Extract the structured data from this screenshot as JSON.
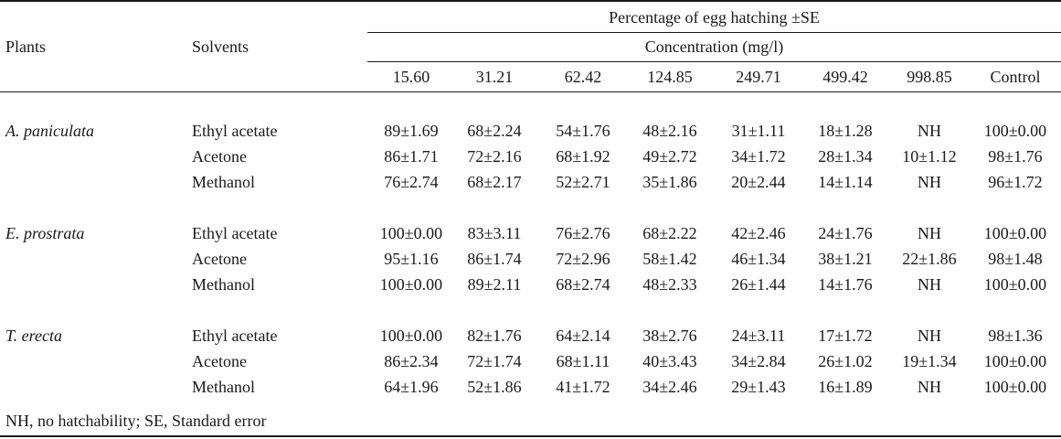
{
  "header": {
    "plants": "Plants",
    "solvents": "Solvents",
    "group_title": "Percentage of egg hatching ±SE",
    "subgroup_title": "Concentration (mg/l)",
    "columns": [
      "15.60",
      "31.21",
      "62.42",
      "124.85",
      "249.71",
      "499.42",
      "998.85",
      "Control"
    ]
  },
  "groups": [
    {
      "plant": "A. paniculata",
      "rows": [
        {
          "solvent": "Ethyl acetate",
          "values": [
            "89±1.69",
            "68±2.24",
            "54±1.76",
            "48±2.16",
            "31±1.11",
            "18±1.28",
            "NH",
            "100±0.00"
          ]
        },
        {
          "solvent": "Acetone",
          "values": [
            "86±1.71",
            "72±2.16",
            "68±1.92",
            "49±2.72",
            "34±1.72",
            "28±1.34",
            "10±1.12",
            "98±1.76"
          ]
        },
        {
          "solvent": "Methanol",
          "values": [
            "76±2.74",
            "68±2.17",
            "52±2.71",
            "35±1.86",
            "20±2.44",
            "14±1.14",
            "NH",
            "96±1.72"
          ]
        }
      ]
    },
    {
      "plant": "E. prostrata",
      "rows": [
        {
          "solvent": "Ethyl acetate",
          "values": [
            "100±0.00",
            "83±3.11",
            "76±2.76",
            "68±2.22",
            "42±2.46",
            "24±1.76",
            "NH",
            "100±0.00"
          ]
        },
        {
          "solvent": "Acetone",
          "values": [
            "95±1.16",
            "86±1.74",
            "72±2.96",
            "58±1.42",
            "46±1.34",
            "38±1.21",
            "22±1.86",
            "98±1.48"
          ]
        },
        {
          "solvent": "Methanol",
          "values": [
            "100±0.00",
            "89±2.11",
            "68±2.74",
            "48±2.33",
            "26±1.44",
            "14±1.76",
            "NH",
            "100±0.00"
          ]
        }
      ]
    },
    {
      "plant": "T. erecta",
      "rows": [
        {
          "solvent": "Ethyl acetate",
          "values": [
            "100±0.00",
            "82±1.76",
            "64±2.14",
            "38±2.76",
            "24±3.11",
            "17±1.72",
            "NH",
            "98±1.36"
          ]
        },
        {
          "solvent": "Acetone",
          "values": [
            "86±2.34",
            "72±1.74",
            "68±1.11",
            "40±3.43",
            "34±2.84",
            "26±1.02",
            "19±1.34",
            "100±0.00"
          ]
        },
        {
          "solvent": "Methanol",
          "values": [
            "64±1.96",
            "52±1.86",
            "41±1.72",
            "34±2.46",
            "29±1.43",
            "16±1.89",
            "NH",
            "100±0.00"
          ]
        }
      ]
    }
  ],
  "footnote": "NH, no hatchability; SE, Standard error"
}
